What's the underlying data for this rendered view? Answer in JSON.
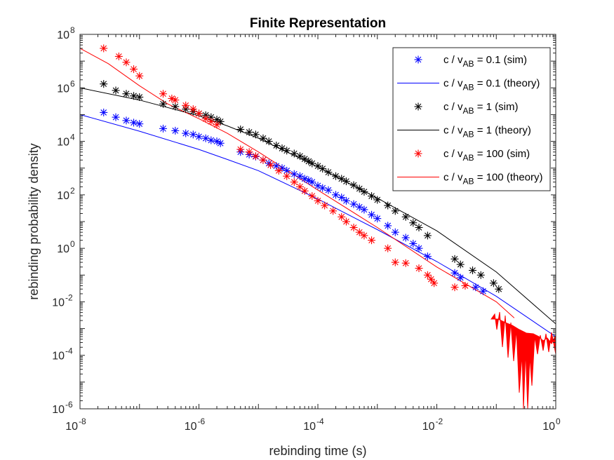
{
  "chart_data": {
    "type": "scatter",
    "title": "Finite Representation",
    "xlabel": "rebinding time (s)",
    "ylabel": "rebinding probability density",
    "xscale": "log",
    "yscale": "log",
    "xlim": [
      1e-08,
      1
    ],
    "ylim": [
      1e-06,
      100000000.0
    ],
    "x_ticks": [
      {
        "base": "10",
        "exp": "-8"
      },
      {
        "base": "10",
        "exp": "-6"
      },
      {
        "base": "10",
        "exp": "-4"
      },
      {
        "base": "10",
        "exp": "-2"
      },
      {
        "base": "10",
        "exp": "0"
      }
    ],
    "y_ticks": [
      {
        "base": "10",
        "exp": "-6"
      },
      {
        "base": "10",
        "exp": "-4"
      },
      {
        "base": "10",
        "exp": "-2"
      },
      {
        "base": "10",
        "exp": "0"
      },
      {
        "base": "10",
        "exp": "2"
      },
      {
        "base": "10",
        "exp": "4"
      },
      {
        "base": "10",
        "exp": "6"
      },
      {
        "base": "10",
        "exp": "8"
      }
    ],
    "grid": false,
    "legend_position": "top-right",
    "legend": [
      {
        "pre": "c / v",
        "sub": "AB",
        "post": " = 0.1 (sim)",
        "style": "marker",
        "color": "#0000ff"
      },
      {
        "pre": "c / v",
        "sub": "AB",
        "post": " = 0.1 (theory)",
        "style": "line",
        "color": "#0000ff"
      },
      {
        "pre": "c / v",
        "sub": "AB",
        "post": " = 1 (sim)",
        "style": "marker",
        "color": "#000000"
      },
      {
        "pre": "c / v",
        "sub": "AB",
        "post": " = 1 (theory)",
        "style": "line",
        "color": "#000000"
      },
      {
        "pre": "c / v",
        "sub": "AB",
        "post": " = 100 (sim)",
        "style": "marker",
        "color": "#ff0000"
      },
      {
        "pre": "c / v",
        "sub": "AB",
        "post": " = 100 (theory)",
        "style": "line",
        "color": "#ff0000"
      }
    ],
    "series": [
      {
        "type": "line",
        "color": "#0000ff",
        "x": [
          1e-08,
          1e-07,
          1e-06,
          3e-06,
          1e-05,
          0.0001,
          0.001,
          0.01,
          0.1,
          1
        ],
        "y": [
          100000.0,
          24000.0,
          5000.0,
          2100.0,
          800,
          70,
          5,
          0.32,
          0.016,
          0.0005
        ]
      },
      {
        "type": "scatter",
        "color": "#0000ff",
        "x": [
          2.5e-08,
          4e-08,
          6e-08,
          8e-08,
          1e-07,
          2.5e-07,
          4e-07,
          6e-07,
          8e-07,
          1e-06,
          1.3e-06,
          1.6e-06,
          2e-06,
          2.3e-06,
          5e-06,
          7e-06,
          9e-06,
          1.2e-05,
          1.5e-05,
          2e-05,
          2.5e-05,
          3e-05,
          4e-05,
          5e-05,
          6e-05,
          7e-05,
          8e-05,
          0.0001,
          0.00012,
          0.00015,
          0.0002,
          0.00025,
          0.0003,
          0.0004,
          0.0005,
          0.0006,
          0.0008,
          0.001,
          0.0015,
          0.002,
          0.003,
          0.004,
          0.005,
          0.007,
          0.02,
          0.025,
          0.045,
          0.06
        ],
        "y": [
          120000.0,
          80000.0,
          60000.0,
          50000.0,
          45000.0,
          30000.0,
          25000.0,
          20000.0,
          18000.0,
          15000.0,
          13000.0,
          11000.0,
          10000.0,
          8500.0,
          4000.0,
          3200.0,
          2700.0,
          2000.0,
          1500.0,
          1200.0,
          1000.0,
          800,
          600,
          500,
          400,
          350,
          300,
          220,
          180,
          150,
          100,
          80,
          60,
          45,
          35,
          28,
          18,
          13,
          7,
          4,
          2.5,
          1.5,
          1,
          0.5,
          0.12,
          0.08,
          0.035,
          0.025
        ]
      },
      {
        "type": "line",
        "color": "#000000",
        "x": [
          1e-08,
          1e-07,
          1e-06,
          3e-06,
          1e-05,
          0.0001,
          0.001,
          0.01,
          0.1,
          1
        ],
        "y": [
          1000000.0,
          350000.0,
          90000.0,
          38000.0,
          13000.0,
          1100.0,
          75,
          4.5,
          0.13,
          0.0015
        ]
      },
      {
        "type": "scatter",
        "color": "#000000",
        "x": [
          2.5e-08,
          4e-08,
          6e-08,
          8e-08,
          1e-07,
          2.5e-07,
          4e-07,
          6e-07,
          8e-07,
          1e-06,
          1.3e-06,
          1.6e-06,
          2e-06,
          2.3e-06,
          5e-06,
          7e-06,
          9e-06,
          1.2e-05,
          1.5e-05,
          2e-05,
          2.5e-05,
          3e-05,
          4e-05,
          5e-05,
          6e-05,
          7e-05,
          8e-05,
          0.0001,
          0.00012,
          0.00015,
          0.0002,
          0.00025,
          0.0003,
          0.0004,
          0.0005,
          0.0006,
          0.0008,
          0.001,
          0.0015,
          0.002,
          0.003,
          0.004,
          0.005,
          0.007,
          0.02,
          0.025,
          0.04,
          0.055,
          0.09,
          0.11
        ],
        "y": [
          1400000.0,
          800000.0,
          600000.0,
          500000.0,
          450000.0,
          250000.0,
          200000.0,
          160000.0,
          130000.0,
          110000.0,
          95000.0,
          80000.0,
          65000.0,
          55000.0,
          28000.0,
          22000.0,
          18000.0,
          13000.0,
          10000.0,
          7000.0,
          5500.0,
          4500.0,
          3500.0,
          2800.0,
          2200.0,
          1800.0,
          1500.0,
          1200.0,
          950,
          700,
          500,
          400,
          320,
          230,
          170,
          130,
          90,
          65,
          40,
          25,
          15,
          9,
          6,
          3,
          0.4,
          0.25,
          0.15,
          0.1,
          0.05,
          0.03
        ]
      },
      {
        "type": "line",
        "color": "#ff0000",
        "x": [
          1e-08,
          3e-08,
          1e-07,
          3e-07,
          1e-06,
          3e-06,
          1e-05,
          0.0001,
          0.001,
          0.01,
          0.1,
          0.2
        ],
        "y": [
          30000000.0,
          8000000.0,
          1200000.0,
          250000.0,
          70000.0,
          20000.0,
          4000.0,
          150,
          6,
          0.2,
          0.01,
          0.0025
        ]
      },
      {
        "type": "scatter",
        "color": "#ff0000",
        "x": [
          2.5e-08,
          4.5e-08,
          6e-08,
          8e-08,
          1e-07,
          2.5e-07,
          3.5e-07,
          4e-07,
          6e-07,
          8e-07,
          1e-06,
          1.3e-06,
          1.6e-06,
          2e-06,
          5e-06,
          7e-06,
          9e-06,
          1.2e-05,
          1.6e-05,
          2.2e-05,
          3e-05,
          4e-05,
          5e-05,
          6e-05,
          8e-05,
          0.0001,
          0.00013,
          0.00018,
          0.00025,
          0.0003,
          0.0004,
          0.0005,
          0.0006,
          0.0008,
          0.0015,
          0.002,
          0.003,
          0.005,
          0.007,
          0.008,
          0.009,
          0.02,
          0.03
        ],
        "y": [
          30000000.0,
          15000000.0,
          9000000.0,
          5000000.0,
          2800000.0,
          600000.0,
          400000.0,
          350000.0,
          220000.0,
          160000.0,
          110000.0,
          70000.0,
          55000.0,
          42000.0,
          5000.0,
          4000.0,
          2800.0,
          2000.0,
          1300.0,
          800,
          500,
          300,
          200,
          140,
          90,
          60,
          40,
          25,
          15,
          10,
          6,
          4,
          3,
          2,
          1,
          0.3,
          0.28,
          0.18,
          0.1,
          0.07,
          0.05,
          0.035,
          0.04
        ]
      }
    ]
  }
}
